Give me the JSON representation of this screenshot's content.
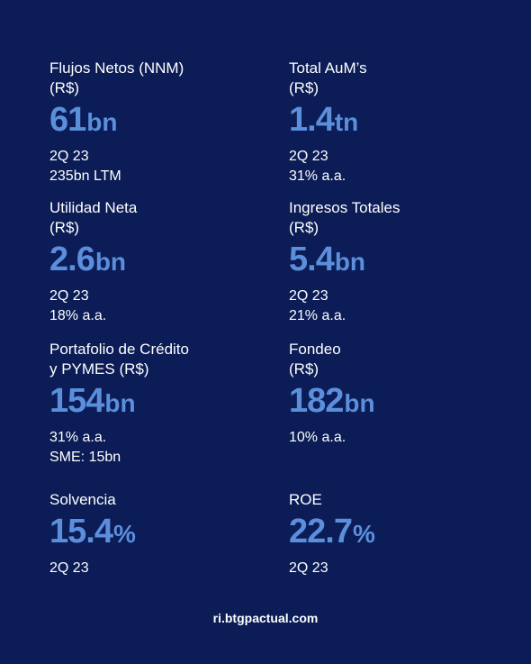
{
  "metrics": [
    {
      "label": "Flujos Netos (NNM)\n(R$)",
      "value": "61",
      "unit": "bn",
      "lines": [
        "2Q 23",
        "235bn LTM"
      ]
    },
    {
      "label": "Total AuM’s\n(R$)",
      "value": "1.4",
      "unit": "tn",
      "lines": [
        "2Q 23",
        "31% a.a."
      ]
    },
    {
      "label": "Utilidad Neta\n(R$)",
      "value": "2.6",
      "unit": "bn",
      "lines": [
        "2Q 23",
        "18% a.a."
      ]
    },
    {
      "label": "Ingresos Totales\n(R$)",
      "value": "5.4",
      "unit": "bn",
      "lines": [
        "2Q 23",
        "21% a.a."
      ]
    },
    {
      "label": "Portafolio de Crédito\ny PYMES (R$)",
      "value": "154",
      "unit": "bn",
      "lines": [
        "31%  a.a.",
        "SME: 15bn"
      ]
    },
    {
      "label": "Fondeo\n(R$)",
      "value": "182",
      "unit": "bn",
      "lines": [
        "10%  a.a."
      ]
    },
    {
      "label": "Solvencia",
      "value": "15.4",
      "unit": "%",
      "lines": [
        "2Q 23"
      ]
    },
    {
      "label": "ROE",
      "value": "22.7",
      "unit": "%",
      "lines": [
        "2Q 23"
      ]
    }
  ],
  "footer": "ri.btgpactual.com",
  "colors": {
    "background": "#0b1c56",
    "accent": "#5b8fdc",
    "text": "#ffffff"
  }
}
